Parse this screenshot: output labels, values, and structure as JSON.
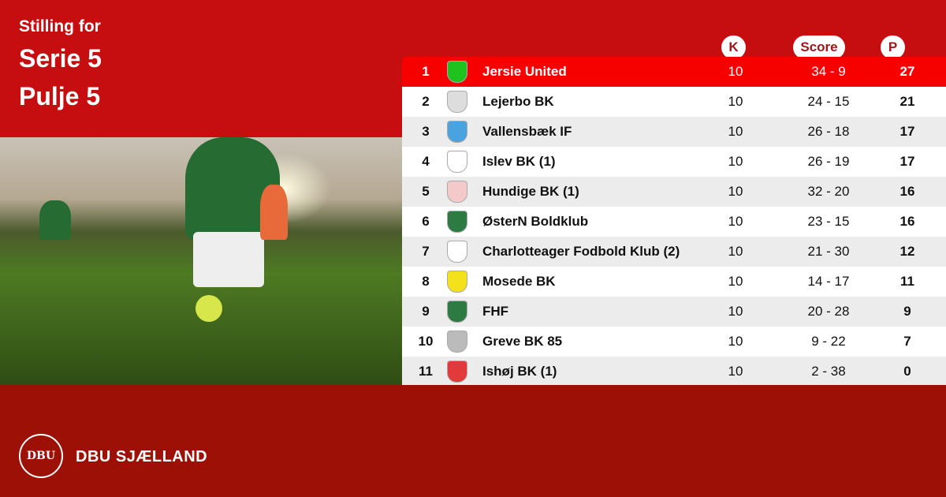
{
  "header": {
    "line1": "Stilling for",
    "line2": "Serie 5",
    "line3": "Pulje 5"
  },
  "columns": {
    "k": "K",
    "score": "Score",
    "p": "P"
  },
  "rows": [
    {
      "pos": "1",
      "team": "Jersie United",
      "k": "10",
      "score": "34 - 9",
      "p": "27",
      "crest": "#1fc21f"
    },
    {
      "pos": "2",
      "team": "Lejerbo BK",
      "k": "10",
      "score": "24 - 15",
      "p": "21",
      "crest": "#dddddd"
    },
    {
      "pos": "3",
      "team": "Vallensbæk IF",
      "k": "10",
      "score": "26 - 18",
      "p": "17",
      "crest": "#4aa3df"
    },
    {
      "pos": "4",
      "team": "Islev BK (1)",
      "k": "10",
      "score": "26 - 19",
      "p": "17",
      "crest": "#ffffff"
    },
    {
      "pos": "5",
      "team": "Hundige BK (1)",
      "k": "10",
      "score": "32 - 20",
      "p": "16",
      "crest": "#f4c9c9"
    },
    {
      "pos": "6",
      "team": "ØsterN Boldklub",
      "k": "10",
      "score": "23 - 15",
      "p": "16",
      "crest": "#2d7a43"
    },
    {
      "pos": "7",
      "team": "Charlotteager Fodbold Klub (2)",
      "k": "10",
      "score": "21 - 30",
      "p": "12",
      "crest": "#ffffff"
    },
    {
      "pos": "8",
      "team": "Mosede BK",
      "k": "10",
      "score": "14 - 17",
      "p": "11",
      "crest": "#f2e11b"
    },
    {
      "pos": "9",
      "team": "FHF",
      "k": "10",
      "score": "20 - 28",
      "p": "9",
      "crest": "#2d7a43"
    },
    {
      "pos": "10",
      "team": "Greve BK 85",
      "k": "10",
      "score": "9 - 22",
      "p": "7",
      "crest": "#bbbbbb"
    },
    {
      "pos": "11",
      "team": "Ishøj BK (1)",
      "k": "10",
      "score": "2 - 38",
      "p": "0",
      "crest": "#e23a3a"
    }
  ],
  "footer": {
    "logo_text": "DBU",
    "brand": "DBU SJÆLLAND"
  }
}
